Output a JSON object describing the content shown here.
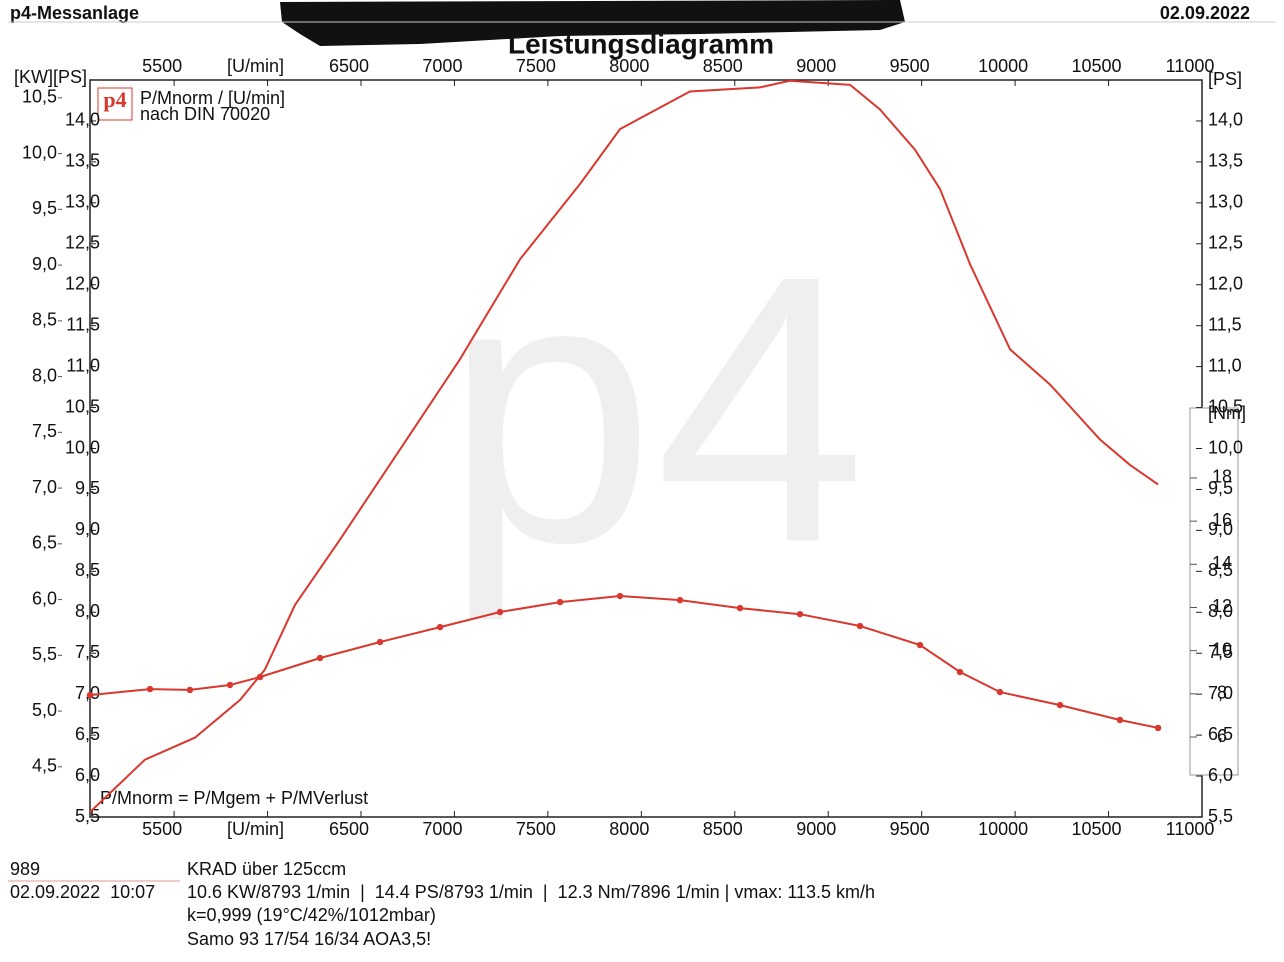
{
  "header": {
    "left": "p4-Messanlage",
    "right": "02.09.2022"
  },
  "chart_data": {
    "type": "line",
    "title": "Leistungsdiagramm",
    "logo": "p4",
    "legend_lines": [
      "P/Mnorm / [U/min]",
      "nach DIN 70020"
    ],
    "formula": "P/Mnorm = P/Mgem + P/MVerlust",
    "left_axis_label": "[KW][PS]",
    "right_axis_label": "[PS]",
    "y2_axis_label": "[Nm]",
    "xlim": [
      5050,
      11000
    ],
    "xticks": [
      5500,
      {
        "value": 6000,
        "label": "[U/min]"
      },
      6500,
      7000,
      7500,
      8000,
      8500,
      9000,
      9500,
      10000,
      10500,
      11000
    ],
    "ylim": [
      5.5,
      14.5
    ],
    "yticks": [
      {
        "value": 5.5,
        "label": "5,5"
      },
      {
        "value": 6.0,
        "label": "6,0"
      },
      {
        "value": 6.5,
        "label": "6,5"
      },
      {
        "value": 7.0,
        "label": "7,0"
      },
      {
        "value": 7.5,
        "label": "7,5"
      },
      {
        "value": 8.0,
        "label": "8,0"
      },
      {
        "value": 8.5,
        "label": "8,5"
      },
      {
        "value": 9.0,
        "label": "9,0"
      },
      {
        "value": 9.5,
        "label": "9,5"
      },
      {
        "value": 10.0,
        "label": "10,0"
      },
      {
        "value": 10.5,
        "label": "10,5"
      },
      {
        "value": 11.0,
        "label": "11,0"
      },
      {
        "value": 11.5,
        "label": "11,5"
      },
      {
        "value": 12.0,
        "label": "12,0"
      },
      {
        "value": 12.5,
        "label": "12,5"
      },
      {
        "value": 13.0,
        "label": "13,0"
      },
      {
        "value": 13.5,
        "label": "13,5"
      },
      {
        "value": 14.0,
        "label": "14,0"
      }
    ],
    "kw_lim": [
      4.05,
      10.66
    ],
    "kw_ticks": [
      {
        "value": 4.5,
        "label": "4,5"
      },
      {
        "value": 5.0,
        "label": "5,0"
      },
      {
        "value": 5.5,
        "label": "5,5"
      },
      {
        "value": 6.0,
        "label": "6,0"
      },
      {
        "value": 6.5,
        "label": "6,5"
      },
      {
        "value": 7.0,
        "label": "7,0"
      },
      {
        "value": 7.5,
        "label": "7,5"
      },
      {
        "value": 8.0,
        "label": "8,0"
      },
      {
        "value": 8.5,
        "label": "8,5"
      },
      {
        "value": 9.0,
        "label": "9,0"
      },
      {
        "value": 9.5,
        "label": "9,5"
      },
      {
        "value": 10.0,
        "label": "10,0"
      },
      {
        "value": 10.5,
        "label": "10,5"
      }
    ],
    "y2lim": [
      4.24,
      21.24
    ],
    "y2ticks": [
      6,
      8,
      10,
      12,
      14,
      16,
      18
    ],
    "grid": false,
    "series": [
      {
        "name": "Leistung",
        "color": "#d9382e",
        "axis": "y",
        "markers": false,
        "x": [
          5050,
          5344,
          5612,
          5853,
          5986,
          6147,
          6388,
          6709,
          7030,
          7351,
          7672,
          7886,
          8260,
          8635,
          8795,
          9117,
          9277,
          9464,
          9598,
          9759,
          9973,
          10187,
          10454,
          10615,
          10765
        ],
        "values": [
          5.56,
          6.2,
          6.47,
          6.93,
          7.3,
          8.09,
          8.89,
          9.99,
          11.09,
          12.31,
          13.23,
          13.9,
          14.36,
          14.41,
          14.49,
          14.44,
          14.14,
          13.65,
          13.17,
          12.25,
          11.21,
          10.78,
          10.11,
          9.8,
          9.56
        ]
      },
      {
        "name": "Drehmoment",
        "color": "#d9382e",
        "axis": "y2",
        "markers": true,
        "x": [
          5050,
          5371,
          5585,
          5799,
          5960,
          6281,
          6602,
          6923,
          7244,
          7565,
          7886,
          8207,
          8528,
          8849,
          9170,
          9491,
          9705,
          9919,
          10240,
          10561,
          10765
        ],
        "values": [
          7.94,
          8.22,
          8.18,
          8.41,
          8.78,
          9.66,
          10.4,
          11.09,
          11.79,
          12.25,
          12.53,
          12.34,
          11.97,
          11.69,
          11.14,
          10.26,
          9.01,
          8.08,
          7.48,
          6.79,
          6.42
        ]
      }
    ]
  },
  "footer": {
    "id": "989",
    "class": "KRAD über 125ccm",
    "datetime": "02.09.2022  10:07",
    "summary": "10.6 KW/8793 1/min  |  14.4 PS/8793 1/min  |  12.3 Nm/7896 1/min | vmax: 113.5 km/h",
    "conditions": "k=0,999 (19°C/42%/1012mbar)",
    "setup": "Samo 93 17/54 16/34 AOA3,5!"
  }
}
